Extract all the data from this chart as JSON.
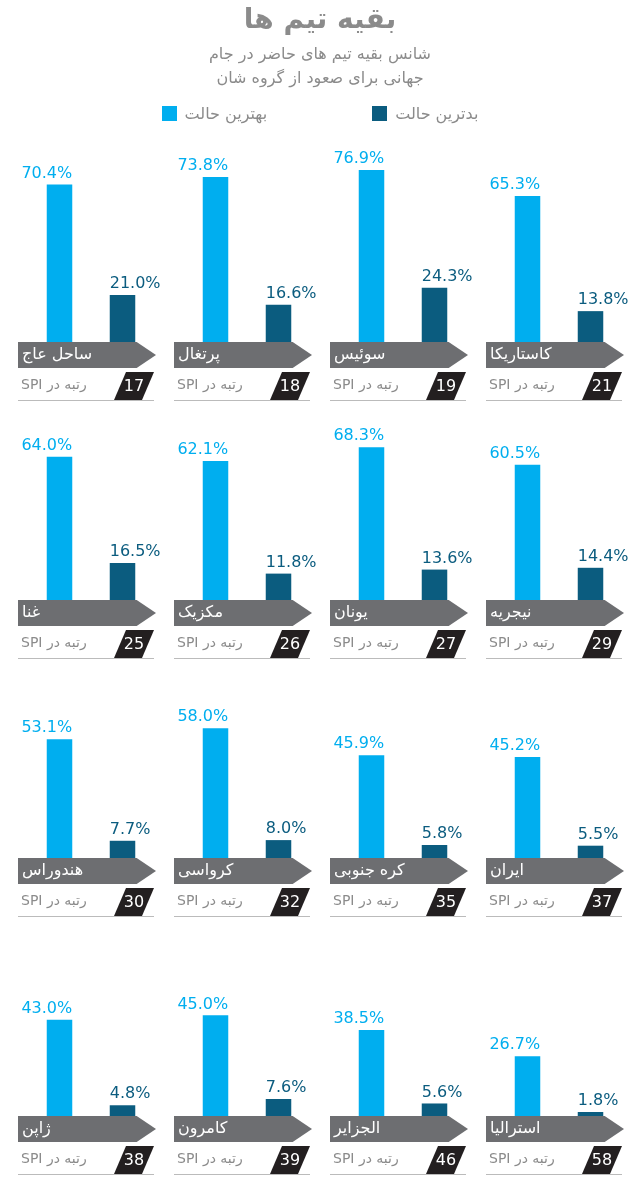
{
  "chart_data": [
    {
      "type": "other",
      "title": "بقیه تیم ها",
      "subtitle": "شانس بقیه تیم های حاضر در جام جهانی برای صعود از گروه شان",
      "legend": "top",
      "series": [
        {
          "name": "بدترین حالت",
          "color": "#0b5c7f"
        },
        {
          "name": "بهترین حالت",
          "color": "#00aeef"
        }
      ]
    },
    {
      "type": "bar",
      "title": "ساحل عاج",
      "categories": [
        null,
        null
      ],
      "values": [
        70.4,
        21.0
      ],
      "value_labels": [
        "70.4%",
        "21.0%"
      ],
      "colors": [
        "#00aeef",
        "#0b5c7f"
      ],
      "annotations": [
        "رتبه در SPI",
        "17"
      ]
    },
    {
      "type": "bar",
      "title": "پرتغال",
      "categories": [
        null,
        null
      ],
      "values": [
        73.8,
        16.6
      ],
      "value_labels": [
        "73.8%",
        "16.6%"
      ],
      "colors": [
        "#00aeef",
        "#0b5c7f"
      ],
      "annotations": [
        "رتبه در SPI",
        "18"
      ]
    },
    {
      "type": "bar",
      "title": "سوئیس",
      "categories": [
        null,
        null
      ],
      "values": [
        76.9,
        24.3
      ],
      "value_labels": [
        "76.9%",
        "24.3%"
      ],
      "colors": [
        "#00aeef",
        "#0b5c7f"
      ],
      "annotations": [
        "رتبه در SPI",
        "19"
      ]
    },
    {
      "type": "bar",
      "title": "کاستاریکا",
      "categories": [
        null,
        null
      ],
      "values": [
        65.3,
        13.8
      ],
      "value_labels": [
        "65.3%",
        "13.8%"
      ],
      "colors": [
        "#00aeef",
        "#0b5c7f"
      ],
      "annotations": [
        "رتبه در SPI",
        "21"
      ]
    },
    {
      "type": "bar",
      "title": "غنا",
      "categories": [
        null,
        null
      ],
      "values": [
        64.0,
        16.5
      ],
      "value_labels": [
        "64.0%",
        "16.5%"
      ],
      "colors": [
        "#00aeef",
        "#0b5c7f"
      ],
      "annotations": [
        "رتبه در SPI",
        "25"
      ]
    },
    {
      "type": "bar",
      "title": "مکزیک",
      "categories": [
        null,
        null
      ],
      "values": [
        62.1,
        11.8
      ],
      "value_labels": [
        "62.1%",
        "11.8%"
      ],
      "colors": [
        "#00aeef",
        "#0b5c7f"
      ],
      "annotations": [
        "رتبه در SPI",
        "26"
      ]
    },
    {
      "type": "bar",
      "title": "یونان",
      "categories": [
        null,
        null
      ],
      "values": [
        68.3,
        13.6
      ],
      "value_labels": [
        "68.3%",
        "13.6%"
      ],
      "colors": [
        "#00aeef",
        "#0b5c7f"
      ],
      "annotations": [
        "رتبه در SPI",
        "27"
      ]
    },
    {
      "type": "bar",
      "title": "نیجریه",
      "categories": [
        null,
        null
      ],
      "values": [
        60.5,
        14.4
      ],
      "value_labels": [
        "60.5%",
        "14.4%"
      ],
      "colors": [
        "#00aeef",
        "#0b5c7f"
      ],
      "annotations": [
        "رتبه در SPI",
        "29"
      ]
    },
    {
      "type": "bar",
      "title": "هندوراس",
      "categories": [
        null,
        null
      ],
      "values": [
        53.1,
        7.7
      ],
      "value_labels": [
        "53.1%",
        "7.7%"
      ],
      "colors": [
        "#00aeef",
        "#0b5c7f"
      ],
      "annotations": [
        "رتبه در SPI",
        "30"
      ]
    },
    {
      "type": "bar",
      "title": "کرواسی",
      "categories": [
        null,
        null
      ],
      "values": [
        58.0,
        8.0
      ],
      "value_labels": [
        "58.0%",
        "8.0%"
      ],
      "colors": [
        "#00aeef",
        "#0b5c7f"
      ],
      "annotations": [
        "رتبه در SPI",
        "32"
      ]
    },
    {
      "type": "bar",
      "title": "کره جنوبی",
      "categories": [
        null,
        null
      ],
      "values": [
        45.9,
        5.8
      ],
      "value_labels": [
        "45.9%",
        "5.8%"
      ],
      "colors": [
        "#00aeef",
        "#0b5c7f"
      ],
      "annotations": [
        "رتبه در SPI",
        "35"
      ]
    },
    {
      "type": "bar",
      "title": "ایران",
      "categories": [
        null,
        null
      ],
      "values": [
        45.2,
        5.5
      ],
      "value_labels": [
        "45.2%",
        "5.5%"
      ],
      "colors": [
        "#00aeef",
        "#0b5c7f"
      ],
      "annotations": [
        "رتبه در SPI",
        "37"
      ]
    },
    {
      "type": "bar",
      "title": "ژاپن",
      "categories": [
        null,
        null
      ],
      "values": [
        43.0,
        4.8
      ],
      "value_labels": [
        "43.0%",
        "4.8%"
      ],
      "colors": [
        "#00aeef",
        "#0b5c7f"
      ],
      "annotations": [
        "رتبه در SPI",
        "38"
      ]
    },
    {
      "type": "bar",
      "title": "کامرون",
      "categories": [
        null,
        null
      ],
      "values": [
        45.0,
        7.6
      ],
      "value_labels": [
        "45.0%",
        "7.6%"
      ],
      "colors": [
        "#00aeef",
        "#0b5c7f"
      ],
      "annotations": [
        "رتبه در SPI",
        "39"
      ]
    },
    {
      "type": "bar",
      "title": "الجزایر",
      "categories": [
        null,
        null
      ],
      "values": [
        38.5,
        5.6
      ],
      "value_labels": [
        "38.5%",
        "5.6%"
      ],
      "colors": [
        "#00aeef",
        "#0b5c7f"
      ],
      "annotations": [
        "رتبه در SPI",
        "46"
      ]
    },
    {
      "type": "bar",
      "title": "استرالیا",
      "categories": [
        null,
        null
      ],
      "values": [
        26.7,
        1.8
      ],
      "value_labels": [
        "26.7%",
        "1.8%"
      ],
      "colors": [
        "#00aeef",
        "#0b5c7f"
      ],
      "annotations": [
        "رتبه در SPI",
        "58"
      ]
    }
  ]
}
